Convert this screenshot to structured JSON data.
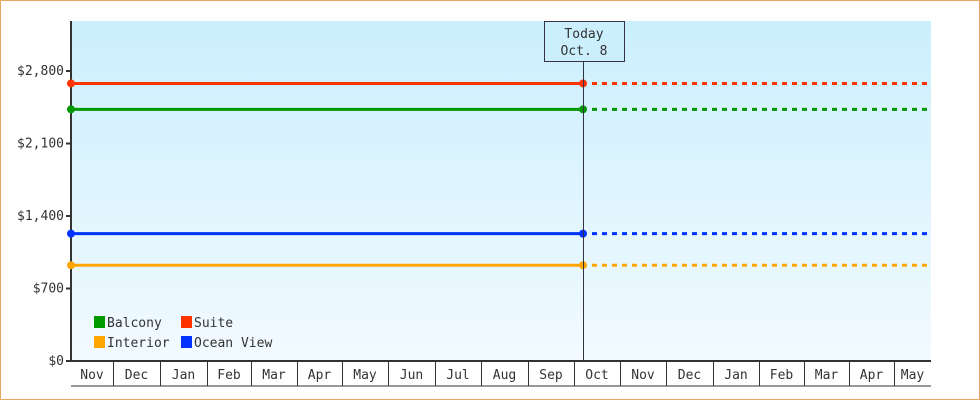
{
  "chart_data": {
    "type": "line",
    "xlabel": "",
    "ylabel": "",
    "ylim": [
      0,
      3283
    ],
    "yticks": [
      0,
      700,
      1400,
      2100,
      2800
    ],
    "ytick_labels": [
      "$0",
      "$700",
      "$1,400",
      "$2,100",
      "$2,800"
    ],
    "x_tick_labels": [
      "Nov",
      "Dec",
      "Jan",
      "Feb",
      "Mar",
      "Apr",
      "May",
      "Jun",
      "Jul",
      "Aug",
      "Sep",
      "Oct",
      "Nov",
      "Dec",
      "Jan",
      "Feb",
      "Mar",
      "Apr",
      "May"
    ],
    "today": {
      "line1": "Today",
      "line2": "Oct. 8"
    },
    "series": [
      {
        "name": "Balcony",
        "color": "#009900",
        "value": 2430
      },
      {
        "name": "Suite",
        "color": "#ff3300",
        "value": 2680
      },
      {
        "name": "Interior",
        "color": "#ffa500",
        "value": 925
      },
      {
        "name": "Ocean View",
        "color": "#0033ff",
        "value": 1230
      }
    ],
    "note_values": "Each series is constant from start through today (solid) and projected forward (dotted)",
    "grid": false,
    "legend_placement": "bottom-left"
  }
}
